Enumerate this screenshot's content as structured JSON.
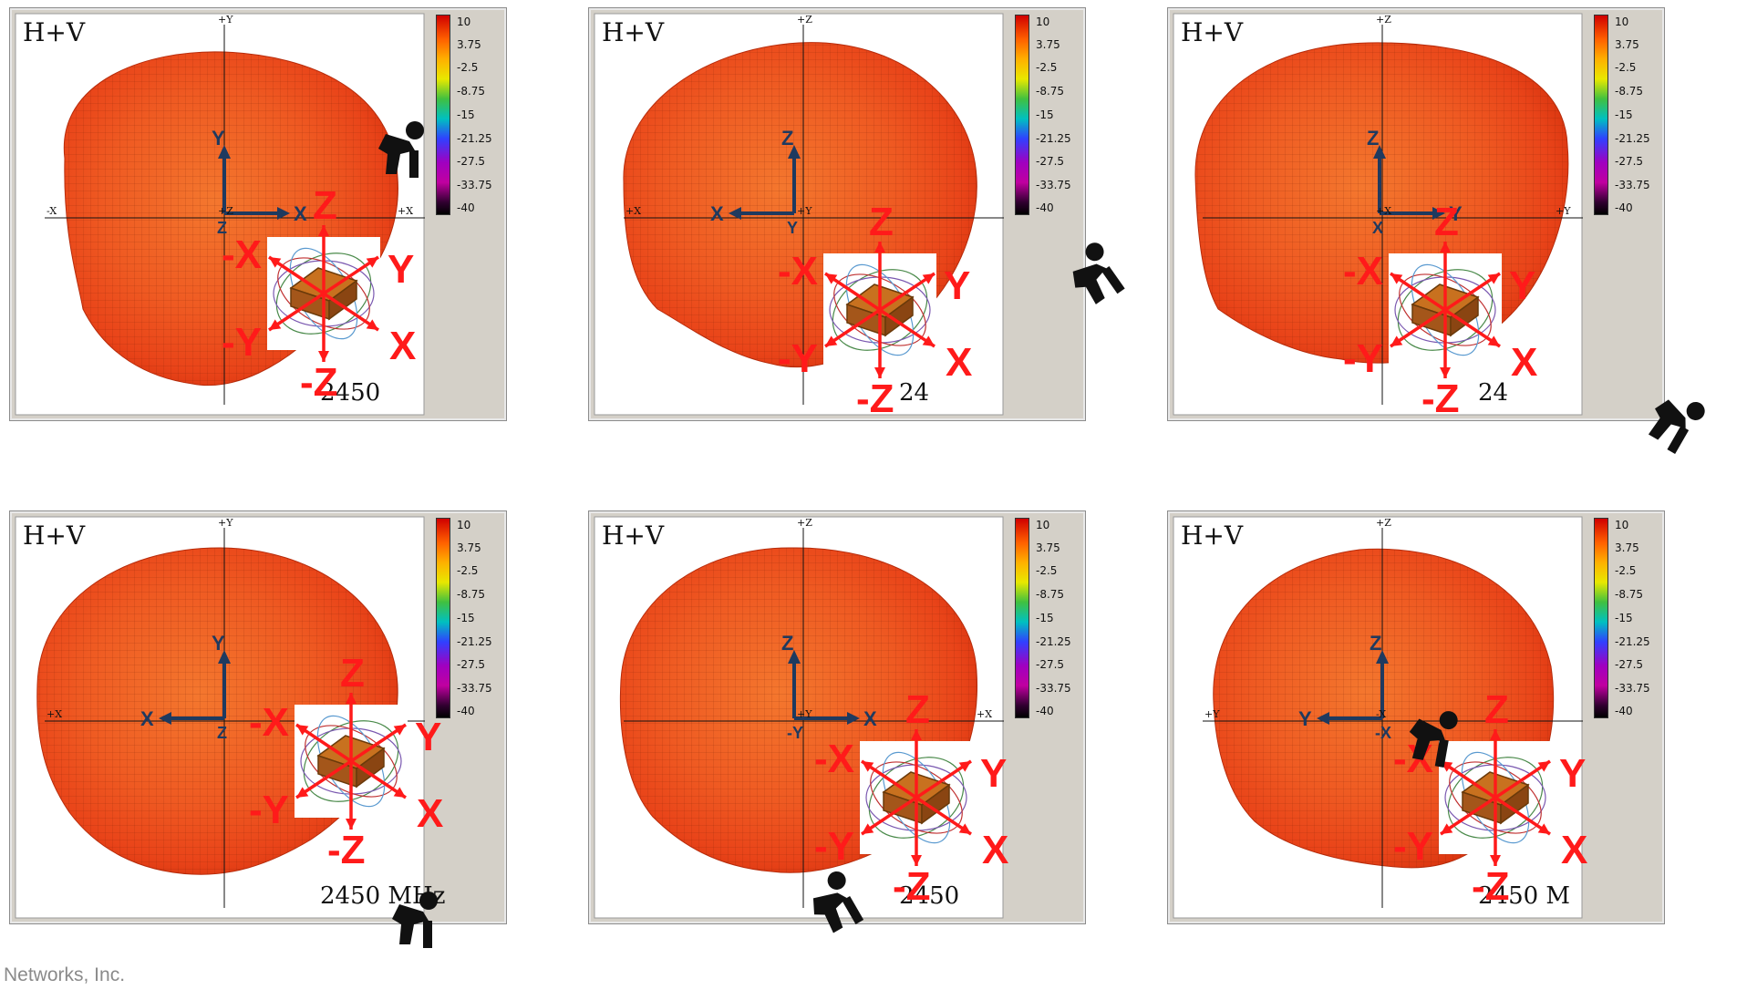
{
  "legend": {
    "ticks": [
      "10",
      "3.75",
      "-2.5",
      "-8.75",
      "-15",
      "-21.25",
      "-27.5",
      "-33.75",
      "-40"
    ]
  },
  "panels": [
    {
      "title": "H+V",
      "frequency": "2450",
      "axes": {
        "top": "+Y",
        "left": "-X",
        "right": "+X",
        "center": "+Z"
      },
      "triad": {
        "vertical": "Y",
        "horizontal": "X",
        "center": "Z"
      },
      "cube_labels": {
        "up": "Z",
        "down": "-Z",
        "left_up": "-X",
        "right_up": "Y",
        "left_down": "-Y",
        "right_down": "X"
      }
    },
    {
      "title": "H+V",
      "frequency": "24",
      "axes": {
        "top": "+Z",
        "left": "+X",
        "right": "",
        "center": "+Y"
      },
      "triad": {
        "vertical": "Z",
        "horizontal": "X",
        "center": "Y"
      },
      "cube_labels": {
        "up": "Z",
        "down": "-Z",
        "left_up": "-X",
        "right_up": "Y",
        "left_down": "-Y",
        "right_down": "X"
      }
    },
    {
      "title": "H+V",
      "frequency": "24",
      "axes": {
        "top": "+Z",
        "left": "",
        "right": "+Y",
        "center": "+X"
      },
      "triad": {
        "vertical": "Z",
        "horizontal": "Y",
        "center": "X"
      },
      "cube_labels": {
        "up": "Z",
        "down": "-Z",
        "left_up": "-X",
        "right_up": "Y",
        "left_down": "-Y",
        "right_down": "X"
      }
    },
    {
      "title": "H+V",
      "frequency": "2450 MHz",
      "axes": {
        "top": "+Y",
        "left": "+X",
        "right": "",
        "center": ""
      },
      "triad": {
        "vertical": "Y",
        "horizontal": "X",
        "center": "Z"
      },
      "cube_labels": {
        "up": "Z",
        "down": "-Z",
        "left_up": "-X",
        "right_up": "Y",
        "left_down": "-Y",
        "right_down": "X"
      }
    },
    {
      "title": "H+V",
      "frequency": "2450",
      "axes": {
        "top": "+Z",
        "left": "",
        "right": "+X",
        "center": "+Y"
      },
      "triad": {
        "vertical": "Z",
        "horizontal": "X",
        "center": "-Y"
      },
      "cube_labels": {
        "up": "Z",
        "down": "-Z",
        "left_up": "-X",
        "right_up": "Y",
        "left_down": "-Y",
        "right_down": "X"
      }
    },
    {
      "title": "H+V",
      "frequency": "2450 M",
      "axes": {
        "top": "+Z",
        "left": "+Y",
        "right": "",
        "center": "-X"
      },
      "triad": {
        "vertical": "Z",
        "horizontal": "Y",
        "center": "-X"
      },
      "cube_labels": {
        "up": "Z",
        "down": "-Z",
        "left_up": "-X",
        "right_up": "Y",
        "left_down": "-Y",
        "right_down": "X"
      }
    }
  ],
  "footer": "Networks, Inc."
}
